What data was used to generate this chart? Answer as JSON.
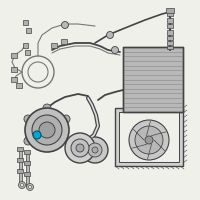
{
  "background_color": "#f0f0eb",
  "line_color": "#777777",
  "dark_color": "#444444",
  "mid_color": "#999999",
  "light_gray": "#cccccc",
  "highlight_color": "#00aacc",
  "fig_width": 2.0,
  "fig_height": 2.0,
  "dpi": 100
}
